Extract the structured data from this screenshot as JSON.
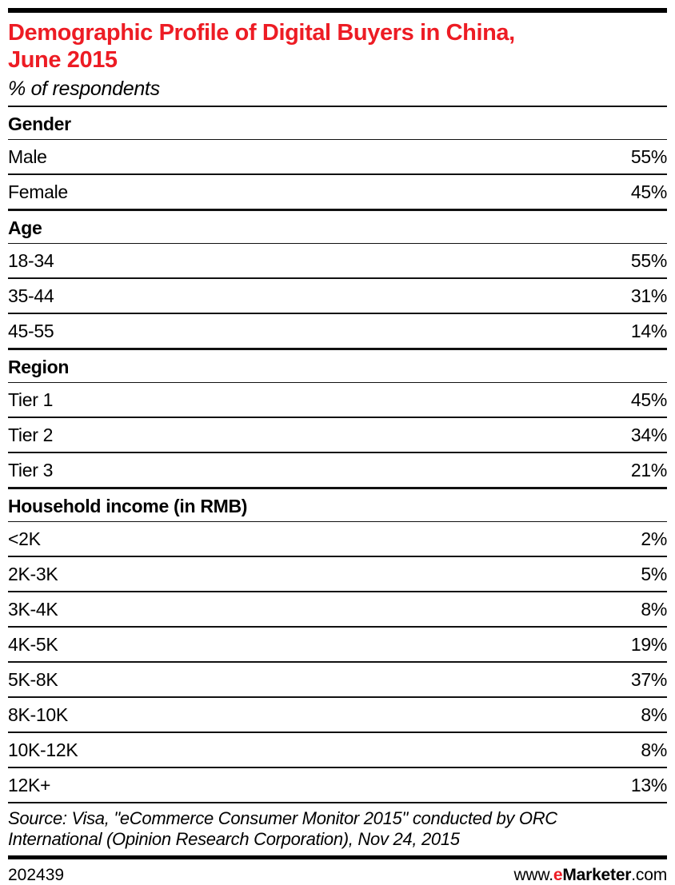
{
  "header": {
    "title_line1": "Demographic Profile of Digital Buyers in China,",
    "title_line2": "June 2015",
    "subtitle": "% of respondents"
  },
  "chart_data": {
    "type": "table",
    "title": "Demographic Profile of Digital Buyers in China, June 2015",
    "subtitle": "% of respondents",
    "value_unit": "% of respondents",
    "sections": [
      {
        "header": "Gender",
        "rows": [
          {
            "label": "Male",
            "value": "55%"
          },
          {
            "label": "Female",
            "value": "45%"
          }
        ]
      },
      {
        "header": "Age",
        "rows": [
          {
            "label": "18-34",
            "value": "55%"
          },
          {
            "label": "35-44",
            "value": "31%"
          },
          {
            "label": "45-55",
            "value": "14%"
          }
        ]
      },
      {
        "header": "Region",
        "rows": [
          {
            "label": "Tier 1",
            "value": "45%"
          },
          {
            "label": "Tier 2",
            "value": "34%"
          },
          {
            "label": "Tier 3",
            "value": "21%"
          }
        ]
      },
      {
        "header": "Household income (in RMB)",
        "rows": [
          {
            "label": "<2K",
            "value": "2%"
          },
          {
            "label": "2K-3K",
            "value": "5%"
          },
          {
            "label": "3K-4K",
            "value": "8%"
          },
          {
            "label": "4K-5K",
            "value": "19%"
          },
          {
            "label": "5K-8K",
            "value": "37%"
          },
          {
            "label": "8K-10K",
            "value": "8%"
          },
          {
            "label": "10K-12K",
            "value": "8%"
          },
          {
            "label": "12K+",
            "value": "13%"
          }
        ]
      }
    ],
    "source": "Source: Visa, \"eCommerce Consumer Monitor 2015\" conducted by ORC International (Opinion Research Corporation), Nov 24, 2015"
  },
  "source_display": {
    "line1": "Source: Visa, \"eCommerce Consumer Monitor 2015\" conducted by ORC",
    "line2": "International (Opinion Research Corporation), Nov 24, 2015"
  },
  "footer": {
    "chart_number": "202439",
    "site": {
      "prefix": "www.",
      "e": "e",
      "brand": "Marketer",
      "suffix": ".com"
    }
  },
  "colors": {
    "accent_red": "#ED1C24",
    "text": "#000000"
  }
}
